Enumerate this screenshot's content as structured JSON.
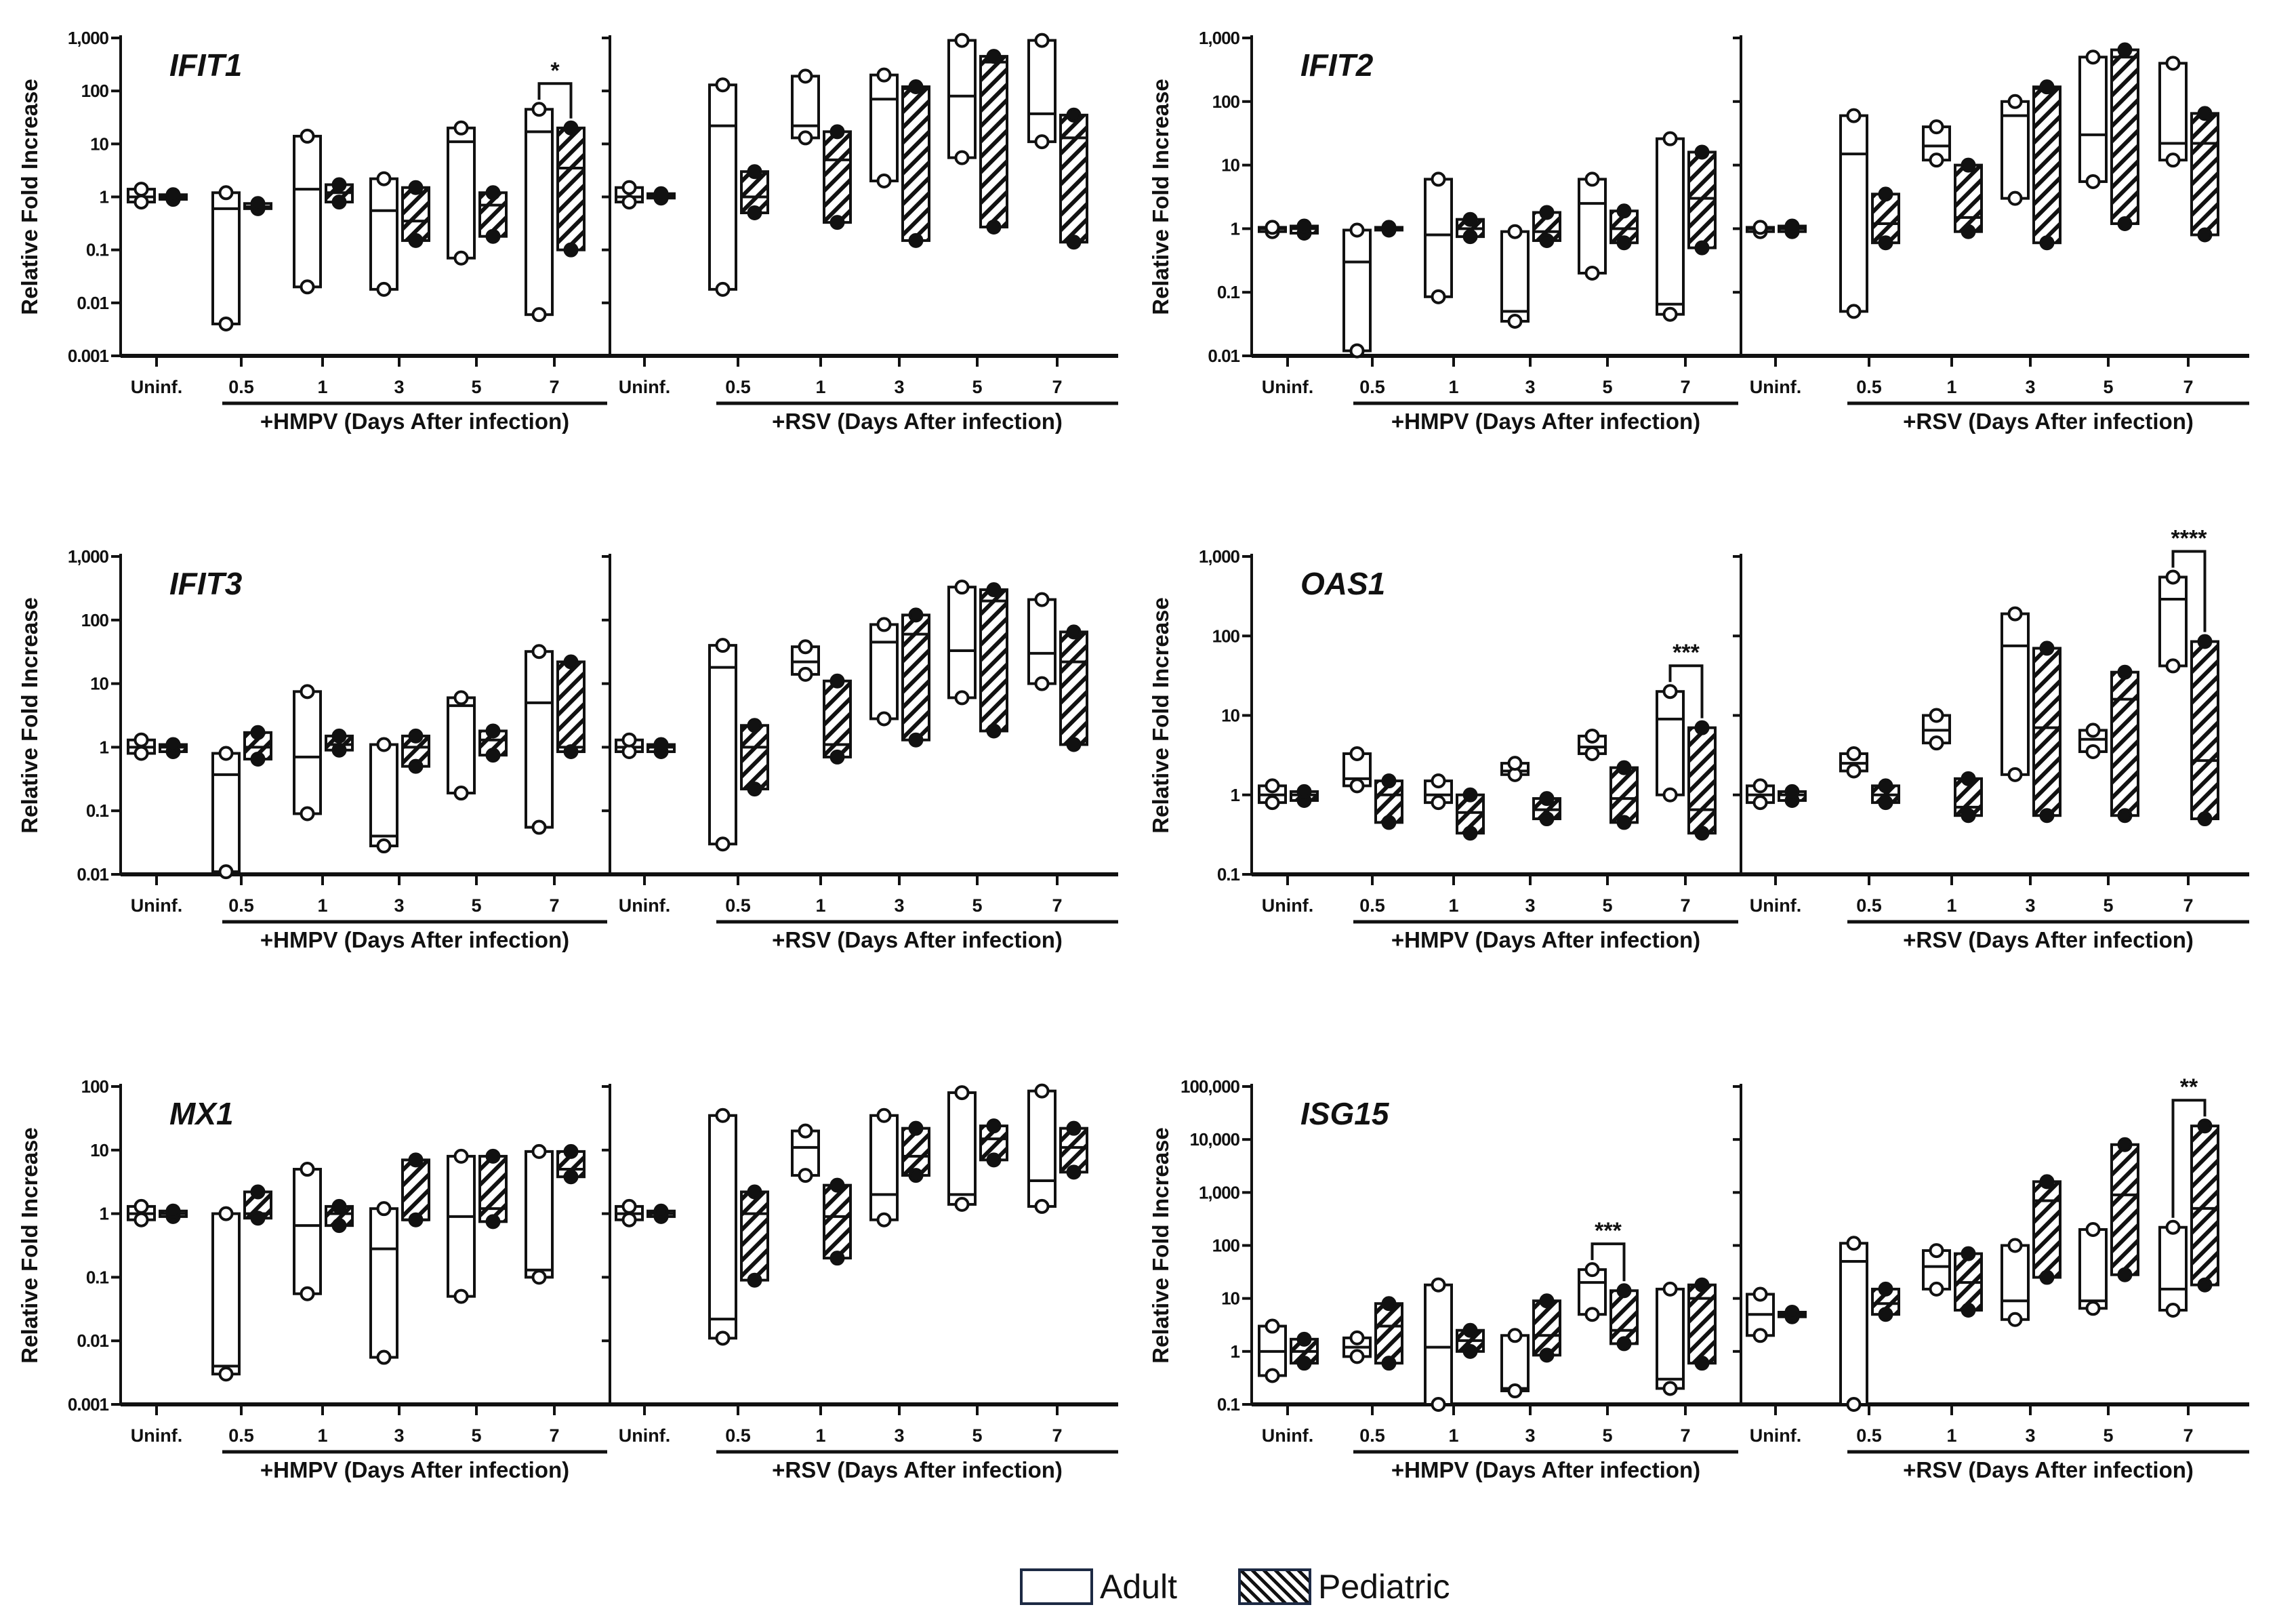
{
  "legend": {
    "adult": "Adult",
    "pediatric": "Pediatric"
  },
  "chart_data": [
    {
      "type": "box",
      "gene": "IFIT1",
      "ylabel": "Relative Fold Increase",
      "yscale": "log",
      "ylim": [
        0.001,
        1000
      ],
      "yticks": [
        "0.001",
        "0.01",
        "0.1",
        "1",
        "10",
        "100",
        "1,000"
      ],
      "groups": [
        {
          "label": "+HMPV (Days After infection)",
          "categories": [
            "Uninf.",
            "0.5",
            "1",
            "3",
            "5",
            "7"
          ],
          "adult": [
            [
              0.8,
              1,
              1.4
            ],
            [
              0.004,
              0.6,
              1.2
            ],
            [
              0.02,
              1.4,
              14
            ],
            [
              0.018,
              0.55,
              2.2
            ],
            [
              0.07,
              11,
              20
            ],
            [
              0.006,
              17,
              45
            ]
          ],
          "pediatric": [
            [
              0.9,
              1,
              1.1
            ],
            [
              0.6,
              0.65,
              0.75
            ],
            [
              0.8,
              1.2,
              1.7
            ],
            [
              0.15,
              0.35,
              1.5
            ],
            [
              0.18,
              0.7,
              1.2
            ],
            [
              0.1,
              3.5,
              20
            ]
          ]
        },
        {
          "label": "+RSV (Days After infection)",
          "categories": [
            "Uninf.",
            "0.5",
            "1",
            "3",
            "5",
            "7"
          ],
          "adult": [
            [
              0.8,
              1,
              1.5
            ],
            [
              0.018,
              22,
              130
            ],
            [
              13,
              22,
              190
            ],
            [
              2,
              70,
              200
            ],
            [
              5.5,
              80,
              900
            ],
            [
              11,
              37,
              900
            ]
          ],
          "pediatric": [
            [
              0.95,
              1.05,
              1.15
            ],
            [
              0.5,
              1,
              3
            ],
            [
              0.33,
              5,
              17
            ],
            [
              0.15,
              110,
              120
            ],
            [
              0.27,
              350,
              450
            ],
            [
              0.14,
              13,
              35
            ]
          ]
        }
      ],
      "significance": [
        {
          "group": 0,
          "category": 5,
          "label": "*"
        }
      ]
    },
    {
      "type": "box",
      "gene": "IFIT2",
      "ylabel": "Relative Fold Increase",
      "yscale": "log",
      "ylim": [
        0.01,
        1000
      ],
      "yticks": [
        "0.01",
        "0.1",
        "1",
        "10",
        "100",
        "1,000"
      ],
      "groups": [
        {
          "label": "+HMPV (Days After infection)",
          "categories": [
            "Uninf.",
            "0.5",
            "1",
            "3",
            "5",
            "7"
          ],
          "adult": [
            [
              0.9,
              1,
              1.05
            ],
            [
              0.012,
              0.3,
              0.95
            ],
            [
              0.085,
              0.8,
              6
            ],
            [
              0.035,
              0.05,
              0.9
            ],
            [
              0.2,
              2.5,
              6
            ],
            [
              0.045,
              0.065,
              26
            ]
          ],
          "pediatric": [
            [
              0.85,
              1,
              1.1
            ],
            [
              0.95,
              1,
              1.05
            ],
            [
              0.75,
              1,
              1.4
            ],
            [
              0.65,
              0.9,
              1.8
            ],
            [
              0.6,
              1,
              1.9
            ],
            [
              0.5,
              3,
              16
            ]
          ]
        },
        {
          "label": "+RSV (Days After infection)",
          "categories": [
            "Uninf.",
            "0.5",
            "1",
            "3",
            "5",
            "7"
          ],
          "adult": [
            [
              0.9,
              1,
              1.05
            ],
            [
              0.05,
              15,
              60
            ],
            [
              12,
              20,
              40
            ],
            [
              3,
              60,
              100
            ],
            [
              5.5,
              30,
              500
            ],
            [
              12,
              22,
              400
            ]
          ],
          "pediatric": [
            [
              0.9,
              1,
              1.1
            ],
            [
              0.6,
              1.2,
              3.5
            ],
            [
              0.9,
              1.5,
              10
            ],
            [
              0.6,
              160,
              170
            ],
            [
              1.2,
              500,
              650
            ],
            [
              0.8,
              22,
              65
            ]
          ]
        }
      ],
      "significance": []
    },
    {
      "type": "box",
      "gene": "IFIT3",
      "ylabel": "Relative Fold Increase",
      "yscale": "log",
      "ylim": [
        0.01,
        1000
      ],
      "yticks": [
        "0.01",
        "0.1",
        "1",
        "10",
        "100",
        "1,000"
      ],
      "groups": [
        {
          "label": "+HMPV (Days After infection)",
          "categories": [
            "Uninf.",
            "0.5",
            "1",
            "3",
            "5",
            "7"
          ],
          "adult": [
            [
              0.8,
              1,
              1.3
            ],
            [
              0.011,
              0.37,
              0.8
            ],
            [
              0.09,
              0.7,
              7.5
            ],
            [
              0.028,
              0.04,
              1.1
            ],
            [
              0.19,
              4.5,
              6
            ],
            [
              0.055,
              5,
              32
            ]
          ],
          "pediatric": [
            [
              0.85,
              1,
              1.1
            ],
            [
              0.65,
              1,
              1.7
            ],
            [
              0.9,
              1.1,
              1.5
            ],
            [
              0.5,
              1,
              1.5
            ],
            [
              0.75,
              1.3,
              1.8
            ],
            [
              0.85,
              1,
              22
            ]
          ]
        },
        {
          "label": "+RSV (Days After infection)",
          "categories": [
            "Uninf.",
            "0.5",
            "1",
            "3",
            "5",
            "7"
          ],
          "adult": [
            [
              0.85,
              1,
              1.3
            ],
            [
              0.03,
              18,
              40
            ],
            [
              14,
              22,
              38
            ],
            [
              2.8,
              45,
              85
            ],
            [
              6,
              33,
              330
            ],
            [
              10,
              30,
              210
            ]
          ],
          "pediatric": [
            [
              0.85,
              1,
              1.1
            ],
            [
              0.22,
              1,
              2.2
            ],
            [
              0.7,
              1.1,
              11
            ],
            [
              1.3,
              60,
              120
            ],
            [
              1.8,
              200,
              300
            ],
            [
              1.1,
              22,
              65
            ]
          ]
        }
      ],
      "significance": []
    },
    {
      "type": "box",
      "gene": "OAS1",
      "ylabel": "Relative Fold Increase",
      "yscale": "log",
      "ylim": [
        0.1,
        1000
      ],
      "yticks": [
        "0.1",
        "1",
        "10",
        "100",
        "1,000"
      ],
      "groups": [
        {
          "label": "+HMPV (Days After infection)",
          "categories": [
            "Uninf.",
            "0.5",
            "1",
            "3",
            "5",
            "7"
          ],
          "adult": [
            [
              0.8,
              1,
              1.3
            ],
            [
              1.3,
              1.6,
              3.3
            ],
            [
              0.8,
              1,
              1.5
            ],
            [
              1.8,
              2,
              2.5
            ],
            [
              3.3,
              4,
              5.5
            ],
            [
              1,
              9,
              20
            ]
          ],
          "pediatric": [
            [
              0.85,
              1,
              1.1
            ],
            [
              0.45,
              1,
              1.5
            ],
            [
              0.33,
              0.6,
              1
            ],
            [
              0.5,
              0.65,
              0.9
            ],
            [
              0.45,
              0.9,
              2.2
            ],
            [
              0.33,
              0.65,
              7
            ]
          ]
        },
        {
          "label": "+RSV (Days After infection)",
          "categories": [
            "Uninf.",
            "0.5",
            "1",
            "3",
            "5",
            "7"
          ],
          "adult": [
            [
              0.8,
              1,
              1.3
            ],
            [
              2,
              2.5,
              3.3
            ],
            [
              4.5,
              6.5,
              10
            ],
            [
              1.8,
              75,
              190
            ],
            [
              3.5,
              5,
              6.5
            ],
            [
              42,
              290,
              550
            ]
          ],
          "pediatric": [
            [
              0.85,
              1,
              1.1
            ],
            [
              0.8,
              1,
              1.3
            ],
            [
              0.55,
              0.7,
              1.6
            ],
            [
              0.55,
              7,
              70
            ],
            [
              0.55,
              16,
              35
            ],
            [
              0.5,
              2.7,
              85
            ]
          ]
        }
      ],
      "significance": [
        {
          "group": 0,
          "category": 5,
          "label": "***"
        },
        {
          "group": 1,
          "category": 5,
          "label": "****"
        }
      ]
    },
    {
      "type": "box",
      "gene": "MX1",
      "ylabel": "Relative Fold Increase",
      "yscale": "log",
      "ylim": [
        0.001,
        100
      ],
      "yticks": [
        "0.001",
        "0.01",
        "0.1",
        "1",
        "10",
        "100"
      ],
      "groups": [
        {
          "label": "+HMPV (Days After infection)",
          "categories": [
            "Uninf.",
            "0.5",
            "1",
            "3",
            "5",
            "7"
          ],
          "adult": [
            [
              0.8,
              1,
              1.3
            ],
            [
              0.003,
              0.004,
              1
            ],
            [
              0.055,
              0.65,
              5
            ],
            [
              0.0055,
              0.28,
              1.2
            ],
            [
              0.05,
              0.9,
              8
            ],
            [
              0.1,
              0.13,
              9.5
            ]
          ],
          "pediatric": [
            [
              0.9,
              1,
              1.1
            ],
            [
              0.85,
              1,
              2.2
            ],
            [
              0.65,
              1,
              1.3
            ],
            [
              0.8,
              0.8,
              7
            ],
            [
              0.75,
              1.2,
              8
            ],
            [
              3.8,
              5,
              9.5
            ]
          ]
        },
        {
          "label": "+RSV (Days After infection)",
          "categories": [
            "Uninf.",
            "0.5",
            "1",
            "3",
            "5",
            "7"
          ],
          "adult": [
            [
              0.8,
              1,
              1.3
            ],
            [
              0.011,
              0.022,
              35
            ],
            [
              4,
              11,
              20
            ],
            [
              0.8,
              2,
              35
            ],
            [
              1.4,
              2,
              80
            ],
            [
              1.3,
              3.3,
              85
            ]
          ],
          "pediatric": [
            [
              0.9,
              1,
              1.1
            ],
            [
              0.09,
              1,
              2.2
            ],
            [
              0.2,
              0.9,
              2.8
            ],
            [
              4,
              8,
              22
            ],
            [
              7,
              15,
              24
            ],
            [
              4.5,
              11,
              22
            ]
          ]
        }
      ],
      "significance": []
    },
    {
      "type": "box",
      "gene": "ISG15",
      "ylabel": "Relative Fold Increase",
      "yscale": "log",
      "ylim": [
        0.1,
        100000
      ],
      "yticks": [
        "0.1",
        "1",
        "10",
        "100",
        "1,000",
        "10,000",
        "100,000"
      ],
      "groups": [
        {
          "label": "+HMPV (Days After infection)",
          "categories": [
            "Uninf.",
            "0.5",
            "1",
            "3",
            "5",
            "7"
          ],
          "adult": [
            [
              0.35,
              1,
              3
            ],
            [
              0.8,
              1.2,
              1.8
            ],
            [
              0.1,
              1.2,
              18
            ],
            [
              0.18,
              0.2,
              2
            ],
            [
              5,
              20,
              35
            ],
            [
              0.2,
              0.3,
              15
            ]
          ],
          "pediatric": [
            [
              0.6,
              1,
              1.7
            ],
            [
              0.6,
              3,
              8
            ],
            [
              1,
              1.6,
              2.5
            ],
            [
              0.85,
              2,
              9
            ],
            [
              1.4,
              2.5,
              14
            ],
            [
              0.6,
              10,
              18
            ]
          ]
        },
        {
          "label": "+RSV (Days After infection)",
          "categories": [
            "Uninf.",
            "0.5",
            "1",
            "3",
            "5",
            "7"
          ],
          "adult": [
            [
              2,
              5,
              12
            ],
            [
              0.1,
              50,
              110
            ],
            [
              15,
              40,
              80
            ],
            [
              4,
              9,
              100
            ],
            [
              6.5,
              9,
              200
            ],
            [
              6,
              15,
              220
            ]
          ],
          "pediatric": [
            [
              4.5,
              5,
              5.5
            ],
            [
              5,
              8,
              15
            ],
            [
              6,
              20,
              70
            ],
            [
              25,
              700,
              1600
            ],
            [
              28,
              900,
              8000
            ],
            [
              18,
              500,
              18000
            ]
          ]
        }
      ],
      "significance": [
        {
          "group": 0,
          "category": 4,
          "label": "***"
        },
        {
          "group": 1,
          "category": 5,
          "label": "**"
        }
      ]
    }
  ]
}
